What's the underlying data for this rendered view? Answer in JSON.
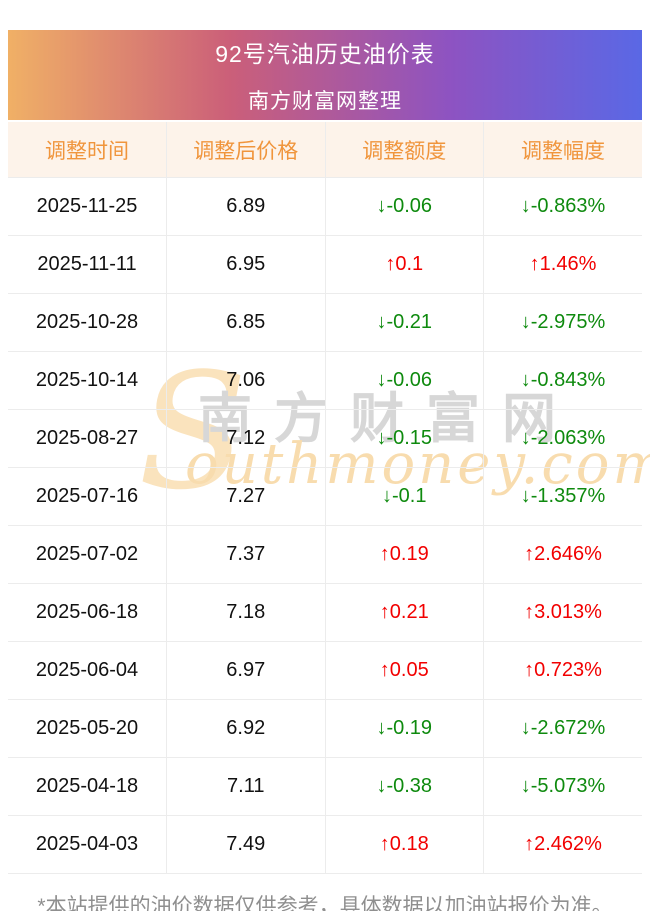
{
  "banner": {
    "title": "92号汽油历史油价表",
    "subtitle": "南方财富网整理"
  },
  "table": {
    "headers": [
      "调整时间",
      "调整后价格",
      "调整额度",
      "调整幅度"
    ],
    "rows": [
      {
        "date": "2025-11-25",
        "price": "6.89",
        "amount": "↓-0.06",
        "range": "↓-0.863%",
        "direction": "down"
      },
      {
        "date": "2025-11-11",
        "price": "6.95",
        "amount": "↑0.1",
        "range": "↑1.46%",
        "direction": "up"
      },
      {
        "date": "2025-10-28",
        "price": "6.85",
        "amount": "↓-0.21",
        "range": "↓-2.975%",
        "direction": "down"
      },
      {
        "date": "2025-10-14",
        "price": "7.06",
        "amount": "↓-0.06",
        "range": "↓-0.843%",
        "direction": "down"
      },
      {
        "date": "2025-08-27",
        "price": "7.12",
        "amount": "↓-0.15",
        "range": "↓-2.063%",
        "direction": "down"
      },
      {
        "date": "2025-07-16",
        "price": "7.27",
        "amount": "↓-0.1",
        "range": "↓-1.357%",
        "direction": "down"
      },
      {
        "date": "2025-07-02",
        "price": "7.37",
        "amount": "↑0.19",
        "range": "↑2.646%",
        "direction": "up"
      },
      {
        "date": "2025-06-18",
        "price": "7.18",
        "amount": "↑0.21",
        "range": "↑3.013%",
        "direction": "up"
      },
      {
        "date": "2025-06-04",
        "price": "6.97",
        "amount": "↑0.05",
        "range": "↑0.723%",
        "direction": "up"
      },
      {
        "date": "2025-05-20",
        "price": "6.92",
        "amount": "↓-0.19",
        "range": "↓-2.672%",
        "direction": "down"
      },
      {
        "date": "2025-04-18",
        "price": "7.11",
        "amount": "↓-0.38",
        "range": "↓-5.073%",
        "direction": "down"
      },
      {
        "date": "2025-04-03",
        "price": "7.49",
        "amount": "↑0.18",
        "range": "↑2.462%",
        "direction": "up"
      }
    ]
  },
  "watermark": {
    "initial": "S",
    "cn": "南方财富网",
    "en": "outhmoney.com"
  },
  "footnote": "*本站提供的油价数据仅供参考，具体数据以加油站报价为准。",
  "colors": {
    "up": "#f20000",
    "down": "#0e8a0e",
    "header_text": "#f0953c",
    "header_bg": "#fdf3ea",
    "banner_gradient": [
      "#f0b066",
      "#cb5f79",
      "#8d53c2",
      "#5a68e5"
    ]
  }
}
